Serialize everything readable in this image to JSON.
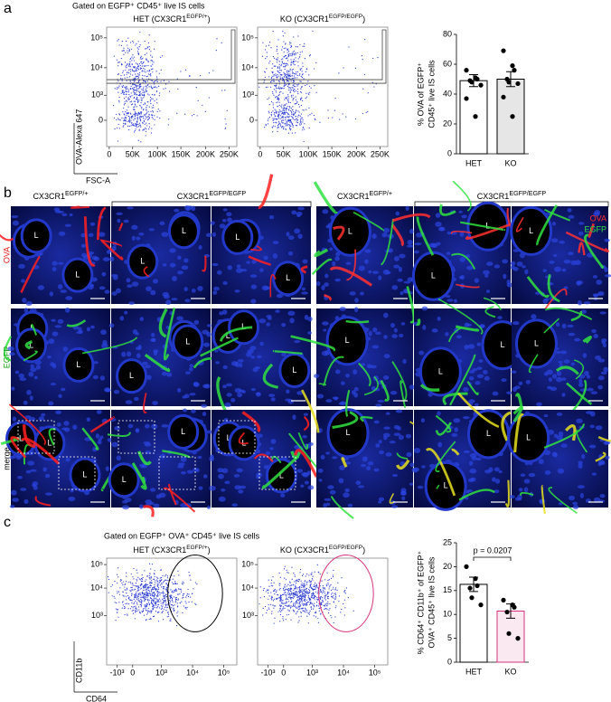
{
  "panel_labels": [
    "a",
    "b",
    "c"
  ],
  "panel_a": {
    "gate_title": "Gated on EGFP⁺ CD45⁺ live IS cells",
    "plot_titles": [
      [
        "HET (CX3CR1",
        "EGFP/+",
        ")"
      ],
      [
        "KO (CX3CR1",
        "EGFP/EGFP",
        ")"
      ]
    ],
    "y_axis_label": "OVA-Alexa 647",
    "x_axis_label": "FSC-A",
    "ytick_labels": [
      "10⁵",
      "10⁴",
      "10³",
      "0"
    ],
    "xtick_labels": [
      "0",
      "50K",
      "100K",
      "150K",
      "200K",
      "250K"
    ]
  },
  "panel_b": {
    "headers": [
      [
        "CX3CR1",
        "EGFP/+"
      ],
      [
        "CX3CR1",
        "EGFP/EGFP"
      ],
      [
        "CX3CR1",
        "EGFP/+"
      ],
      [
        "CX3CR1",
        "EGFP/EGFP"
      ]
    ],
    "row_labels": [
      "OVA",
      "EGFP",
      "merge"
    ],
    "lumen_label": "L",
    "channel_labels": [
      "OVA",
      "EGFP"
    ]
  },
  "panel_c": {
    "gate_title": "Gated on EGFP⁺ OVA⁺ CD45⁺ live IS cells",
    "plot_titles": [
      [
        "HET (CX3CR1",
        "EGFP/+",
        ")"
      ],
      [
        "KO (CX3CR1",
        "EGFP/EGFP",
        ")"
      ]
    ],
    "y_axis_label": "CD11b",
    "x_axis_label": "CD64",
    "ytick_labels": [
      "10⁵",
      "10⁴",
      "10³"
    ],
    "xtick_labels": [
      "-10³",
      "0",
      "10³",
      "10⁴",
      "10⁵"
    ]
  },
  "chart_data": [
    {
      "type": "bar",
      "y_label": [
        "% OVA of EGFP⁺",
        "CD45⁺ live IS cells"
      ],
      "categories": [
        "HET",
        "KO"
      ],
      "values": [
        49,
        50
      ],
      "errors": [
        4,
        5
      ],
      "points": [
        [
          56,
          51,
          50,
          49,
          48,
          46,
          37,
          25
        ],
        [
          69,
          59,
          56,
          50,
          48,
          47,
          38,
          25
        ]
      ],
      "fills": [
        "#ffffff",
        "#e6e6e6"
      ],
      "edges": [
        "#000000",
        "#000000"
      ],
      "ylim": [
        0,
        80
      ],
      "yticks": [
        0,
        20,
        40,
        60,
        80
      ]
    },
    {
      "type": "bar",
      "y_label": [
        "% CD64⁺ CD11b⁺ of EGFP⁺",
        "OVA⁺ CD45⁺ live IS cells"
      ],
      "categories": [
        "HET",
        "KO"
      ],
      "values": [
        16.3,
        10.7
      ],
      "errors": [
        1.5,
        1.5
      ],
      "points": [
        [
          20,
          17.5,
          16,
          15.5,
          13.5,
          12
        ],
        [
          13,
          12,
          11.5,
          10.5,
          6,
          5
        ]
      ],
      "fills": [
        "#ffffff",
        "#fbe9f1"
      ],
      "edges": [
        "#000000",
        "#d6337a"
      ],
      "ylim": [
        0,
        25
      ],
      "yticks": [
        0,
        5,
        10,
        15,
        20,
        25
      ],
      "annotation": "p = 0.0207"
    }
  ]
}
